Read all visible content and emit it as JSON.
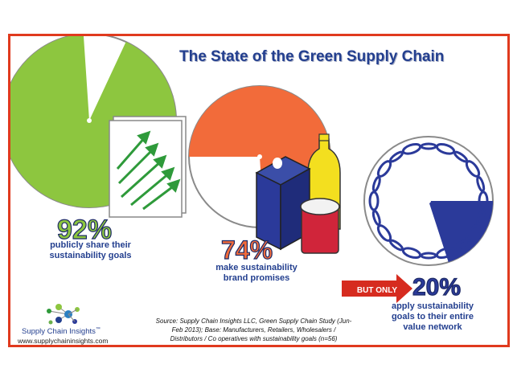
{
  "title": "The State of the Green Supply Chain",
  "chart_data": [
    {
      "type": "pie",
      "categories": [
        "publicly share their sustainability goals",
        "other"
      ],
      "values": [
        92,
        8
      ],
      "label": "92%",
      "caption": [
        "publicly share their",
        "sustainability goals"
      ],
      "colors": {
        "main": "#8dc63f",
        "rest": "#ffffff",
        "outline": "#8a8a8a"
      }
    },
    {
      "type": "pie",
      "categories": [
        "make sustainability brand promises",
        "other"
      ],
      "values": [
        74,
        26
      ],
      "label": "74%",
      "caption": [
        "make sustainability",
        "brand promises"
      ],
      "colors": {
        "main": "#f26b3a",
        "rest": "#ffffff",
        "outline": "#8a8a8a"
      }
    },
    {
      "type": "pie",
      "categories": [
        "apply sustainability goals to their entire value network",
        "other"
      ],
      "values": [
        20,
        80
      ],
      "label": "20%",
      "caption": [
        "apply sustainability",
        "goals to their entire",
        "value network"
      ],
      "colors": {
        "main": "#2b3a9a",
        "rest": "#ffffff",
        "outline": "#8a8a8a"
      }
    }
  ],
  "callout": {
    "text": "BUT ONLY",
    "color": "#d62b1f"
  },
  "source": "Source: Supply Chain Insights LLC, Green Supply Chain Study (Jun-Feb 2013); Base: Manufacturers, Retailers, Wholesalers / Distributors / Co operatives with sustainability goals (n=56)",
  "logo": {
    "name": "Supply Chain Insights",
    "trademark": "™",
    "url": "www.supplychaininsights.com"
  },
  "icons": [
    "growth-arrows-icon",
    "milk-carton-icon",
    "bottle-icon",
    "jar-icon",
    "chain-icon",
    "red-arrow-icon",
    "molecule-logo-icon"
  ],
  "colors": {
    "title": "#233f8f",
    "frame": "#e03a1e",
    "green": "#8dc63f",
    "orange": "#f26b3a",
    "navy": "#2b3a9a"
  }
}
